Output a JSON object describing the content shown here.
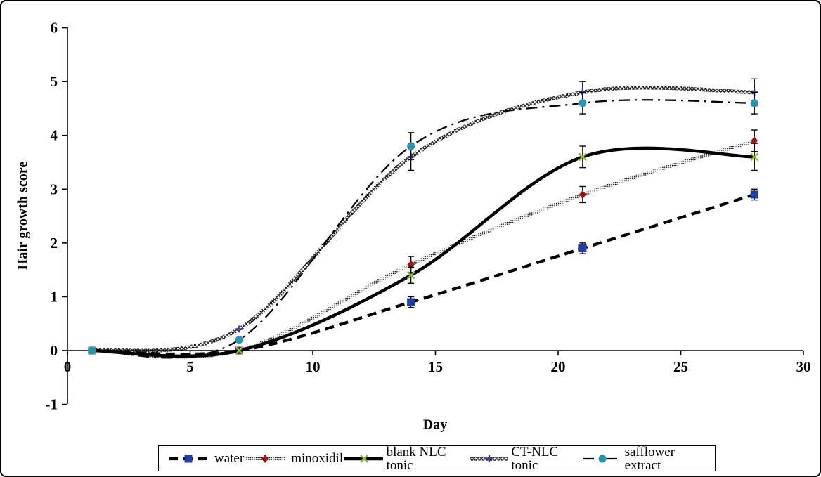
{
  "figure": {
    "y_axis": {
      "title": "Hair growth score",
      "ticks": [
        {
          "label": "-1",
          "value": -1
        },
        {
          "label": "0",
          "value": 0
        },
        {
          "label": "1",
          "value": 1
        },
        {
          "label": "2",
          "value": 2
        },
        {
          "label": "3",
          "value": 3
        },
        {
          "label": "4",
          "value": 4
        },
        {
          "label": "5",
          "value": 5
        },
        {
          "label": "6",
          "value": 6
        }
      ]
    },
    "x_axis": {
      "title": "Day",
      "ticks": [
        {
          "label": "0",
          "value": 0
        },
        {
          "label": "5",
          "value": 5
        },
        {
          "label": "10",
          "value": 10
        },
        {
          "label": "15",
          "value": 15
        },
        {
          "label": "20",
          "value": 20
        },
        {
          "label": "25",
          "value": 25
        },
        {
          "label": "30",
          "value": 30
        }
      ]
    }
  },
  "chart_data": {
    "type": "line",
    "title": "",
    "xlabel": "Day",
    "ylabel": "Hair growth score",
    "x": [
      1,
      7,
      14,
      21,
      28
    ],
    "xlim": [
      0,
      30
    ],
    "ylim": [
      -1,
      6
    ],
    "grid": false,
    "smoothed": true,
    "legend_position": "bottom",
    "axis_color": "#000000",
    "background_color": "#ffffff",
    "series": [
      {
        "name": "water",
        "values": [
          0,
          0,
          0.9,
          1.9,
          2.9
        ],
        "errors": [
          0,
          0,
          0.1,
          0.1,
          0.1
        ],
        "marker": "square",
        "marker_color": "#203ea0",
        "line_color": "#000000",
        "line_style": "dashed"
      },
      {
        "name": "minoxidil",
        "values": [
          0,
          0,
          1.6,
          2.9,
          3.9
        ],
        "errors": [
          0,
          0,
          0.15,
          0.15,
          0.2
        ],
        "marker": "diamond",
        "marker_color": "#9c1515",
        "line_color": "#000000",
        "line_style": "dotted-band"
      },
      {
        "name": "blank NLC tonic",
        "values": [
          0,
          0,
          1.4,
          3.6,
          3.6
        ],
        "errors": [
          0,
          0,
          0.15,
          0.2,
          0.25
        ],
        "marker": "x",
        "marker_color": "#8fb93c",
        "line_color": "#000000",
        "line_style": "solid"
      },
      {
        "name": "CT-NLC tonic",
        "values": [
          0,
          0.4,
          3.6,
          4.8,
          4.8
        ],
        "errors": [
          0,
          0,
          0.25,
          0.2,
          0.25
        ],
        "marker": "plus",
        "marker_color": "#4a3f8f",
        "line_color": "#000000",
        "line_style": "chain"
      },
      {
        "name": "safflower extract",
        "values": [
          0,
          0.2,
          3.8,
          4.6,
          4.6
        ],
        "errors": [
          0,
          0,
          0.25,
          0.2,
          0.2
        ],
        "marker": "circle",
        "marker_color": "#2695b0",
        "line_color": "#000000",
        "line_style": "dash-dot"
      }
    ]
  }
}
